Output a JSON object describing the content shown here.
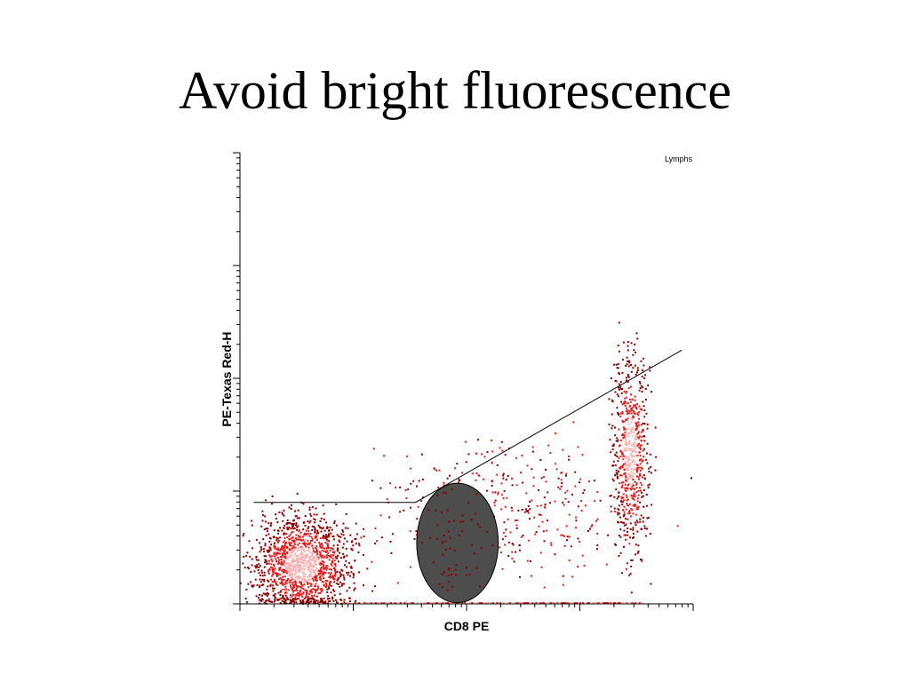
{
  "slide": {
    "title": "Avoid bright fluorescence"
  },
  "chart_data": {
    "type": "scatter",
    "title": "",
    "xlabel": "CD8 PE",
    "ylabel": "PE-Texas Red-H",
    "x_scale": "log",
    "y_scale": "log",
    "xlim_decades": [
      0,
      4
    ],
    "ylim_decades": [
      0,
      4
    ],
    "gate_label": "Lymphs",
    "colors": {
      "dense": "#ffb0b0",
      "medium": "#e02020",
      "sparse": "#8b0000",
      "axis": "#000000",
      "overlay_ellipse": "#4d4d4d"
    },
    "populations": [
      {
        "name": "",
        "x_center_decades": 0.55,
        "y_center_decades": 0.35,
        "x_spread": 0.22,
        "y_spread": 0.22,
        "points": 1400
      },
      {
        "name": "",
        "x_center_decades": 3.45,
        "y_center_decades": 1.35,
        "x_spread": 0.08,
        "y_spread": 0.45,
        "points": 650
      },
      {
        "name": "",
        "x_center_decades": 2.3,
        "y_center_decades": 0.85,
        "x_spread": 0.55,
        "y_spread": 0.3,
        "points": 380
      }
    ],
    "diagonal_line_decades": [
      [
        0.12,
        0.9
      ],
      [
        1.55,
        0.9
      ],
      [
        3.9,
        2.25
      ]
    ],
    "overlay_ellipse_decades": {
      "cx": 1.92,
      "cy": 0.54,
      "rx": 0.36,
      "ry": 0.53
    }
  }
}
